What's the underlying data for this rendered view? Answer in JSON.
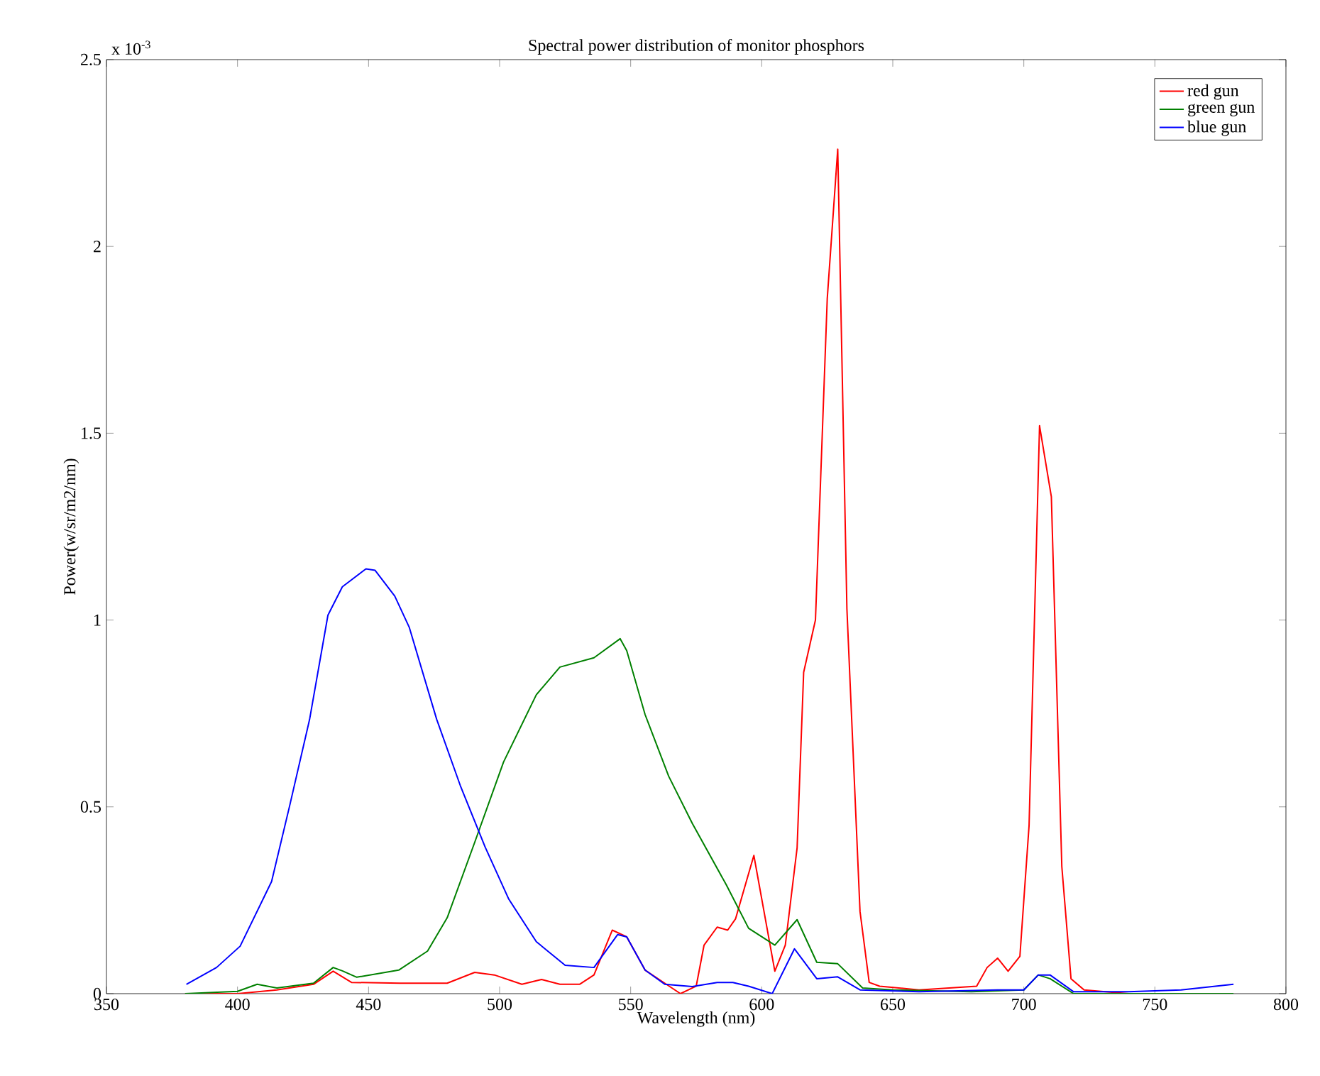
{
  "chart_data": {
    "type": "line",
    "title": "Spectral power distribution of monitor phosphors",
    "xlabel": "Wavelength (nm)",
    "ylabel": "Power(w/sr/m2/nm)",
    "annotations": [
      "x 10$^{-3}$"
    ],
    "xlim": [
      350,
      800
    ],
    "xticks": [
      350,
      400,
      450,
      500,
      550,
      600,
      650,
      700,
      750,
      800
    ],
    "ylim": [
      0,
      2.5
    ],
    "yticks": [
      0,
      0.5,
      1,
      1.5,
      2,
      2.5
    ],
    "grid": false,
    "legend": "top right",
    "line_style": "solid",
    "marker": "none",
    "series": [
      {
        "name": "red gun",
        "color": "#ff0000",
        "x": [
          380,
          400,
          415,
          429,
          436.5,
          443.5,
          462,
          480,
          490.5,
          498,
          508.5,
          516,
          523,
          530.5,
          536,
          543,
          548.5,
          555.5,
          563,
          569,
          575,
          578,
          583,
          587,
          590,
          597,
          605,
          609,
          613.5,
          616,
          620.5,
          625,
          629,
          632.5,
          637.5,
          641,
          645,
          660,
          682,
          686,
          690,
          694,
          698.5,
          702,
          706,
          710.5,
          714.5,
          718,
          723,
          740
        ],
        "values": [
          0,
          0,
          0.01,
          0.025,
          0.06,
          0.03,
          0.028,
          0.028,
          0.057,
          0.05,
          0.025,
          0.038,
          0.025,
          0.025,
          0.05,
          0.17,
          0.152,
          0.063,
          0.028,
          0,
          0.02,
          0.13,
          0.178,
          0.17,
          0.2,
          0.37,
          0.06,
          0.13,
          0.39,
          0.86,
          1.0,
          1.86,
          2.26,
          1.03,
          0.22,
          0.03,
          0.02,
          0.01,
          0.02,
          0.07,
          0.095,
          0.06,
          0.1,
          0.45,
          1.52,
          1.33,
          0.34,
          0.04,
          0.01,
          0
        ]
      },
      {
        "name": "green gun",
        "color": "#008000",
        "x": [
          380,
          400,
          407.5,
          415,
          429,
          436.5,
          440,
          445.5,
          461.5,
          472.5,
          480,
          490.5,
          501.5,
          514,
          523,
          536,
          546,
          548.5,
          555.5,
          564.5,
          573.5,
          586.5,
          595,
          605,
          613.5,
          621,
          629,
          638.5,
          650,
          680,
          700,
          705.5,
          710,
          719,
          750,
          780
        ],
        "values": [
          0,
          0.006,
          0.025,
          0.015,
          0.028,
          0.07,
          0.061,
          0.044,
          0.063,
          0.114,
          0.203,
          0.405,
          0.62,
          0.8,
          0.874,
          0.899,
          0.95,
          0.918,
          0.747,
          0.582,
          0.456,
          0.291,
          0.175,
          0.13,
          0.198,
          0.084,
          0.08,
          0.015,
          0.01,
          0.005,
          0.01,
          0.05,
          0.04,
          0,
          0,
          0
        ]
      },
      {
        "name": "blue gun",
        "color": "#0000ff",
        "x": [
          380.5,
          392,
          401,
          413,
          420,
          427.5,
          434.5,
          440,
          449,
          452.5,
          460,
          465.5,
          476,
          485,
          494.5,
          503.5,
          514,
          525,
          536,
          545,
          548.5,
          555.5,
          563,
          573.5,
          583,
          589,
          595,
          604,
          612.5,
          621,
          629,
          637.5,
          660,
          690,
          700,
          705.5,
          710,
          719,
          740,
          760,
          780
        ],
        "values": [
          0.025,
          0.07,
          0.127,
          0.3,
          0.506,
          0.734,
          1.013,
          1.089,
          1.137,
          1.133,
          1.064,
          0.981,
          0.734,
          0.557,
          0.392,
          0.253,
          0.139,
          0.076,
          0.07,
          0.158,
          0.152,
          0.063,
          0.025,
          0.019,
          0.03,
          0.03,
          0.02,
          0.0,
          0.12,
          0.04,
          0.045,
          0.01,
          0.005,
          0.01,
          0.01,
          0.05,
          0.05,
          0.005,
          0.005,
          0.01,
          0.025
        ]
      }
    ]
  }
}
